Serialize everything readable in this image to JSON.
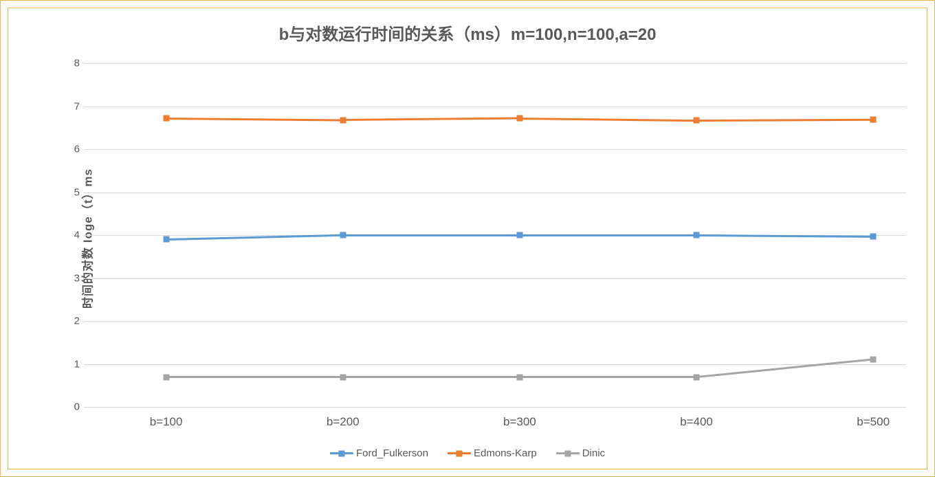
{
  "chart": {
    "type": "line",
    "title": "b与对数运行时间的关系（ms）m=100,n=100,a=20",
    "title_fontsize": 24,
    "title_color": "#595959",
    "y_axis_label": "时间的对数  loge（t）ms",
    "y_axis_label_fontsize": 17,
    "background_color": "#ffffff",
    "outer_border_color": "#f0b450",
    "inner_border_color": "#f0b450",
    "grid_color": "#d9d9d9",
    "text_color": "#595959",
    "ylim": [
      0,
      8
    ],
    "ytick_step": 1,
    "yticks": [
      0,
      1,
      2,
      3,
      4,
      5,
      6,
      7,
      8
    ],
    "categories": [
      "b=100",
      "b=200",
      "b=300",
      "b=400",
      "b=500"
    ],
    "x_tick_fontsize": 17,
    "y_tick_fontsize": 15,
    "marker_style": "square",
    "marker_size": 9,
    "line_width": 3,
    "series": [
      {
        "name": "Ford_Fulkerson",
        "color": "#5b9bd5",
        "values": [
          3.9,
          4.0,
          4.0,
          4.0,
          3.97
        ]
      },
      {
        "name": "Edmons-Karp",
        "color": "#ed7d31",
        "values": [
          6.72,
          6.68,
          6.72,
          6.67,
          6.69
        ]
      },
      {
        "name": "Dinic",
        "color": "#a5a5a5",
        "values": [
          0.69,
          0.69,
          0.69,
          0.69,
          1.1
        ]
      }
    ],
    "legend_position": "bottom",
    "legend_fontsize": 15
  }
}
